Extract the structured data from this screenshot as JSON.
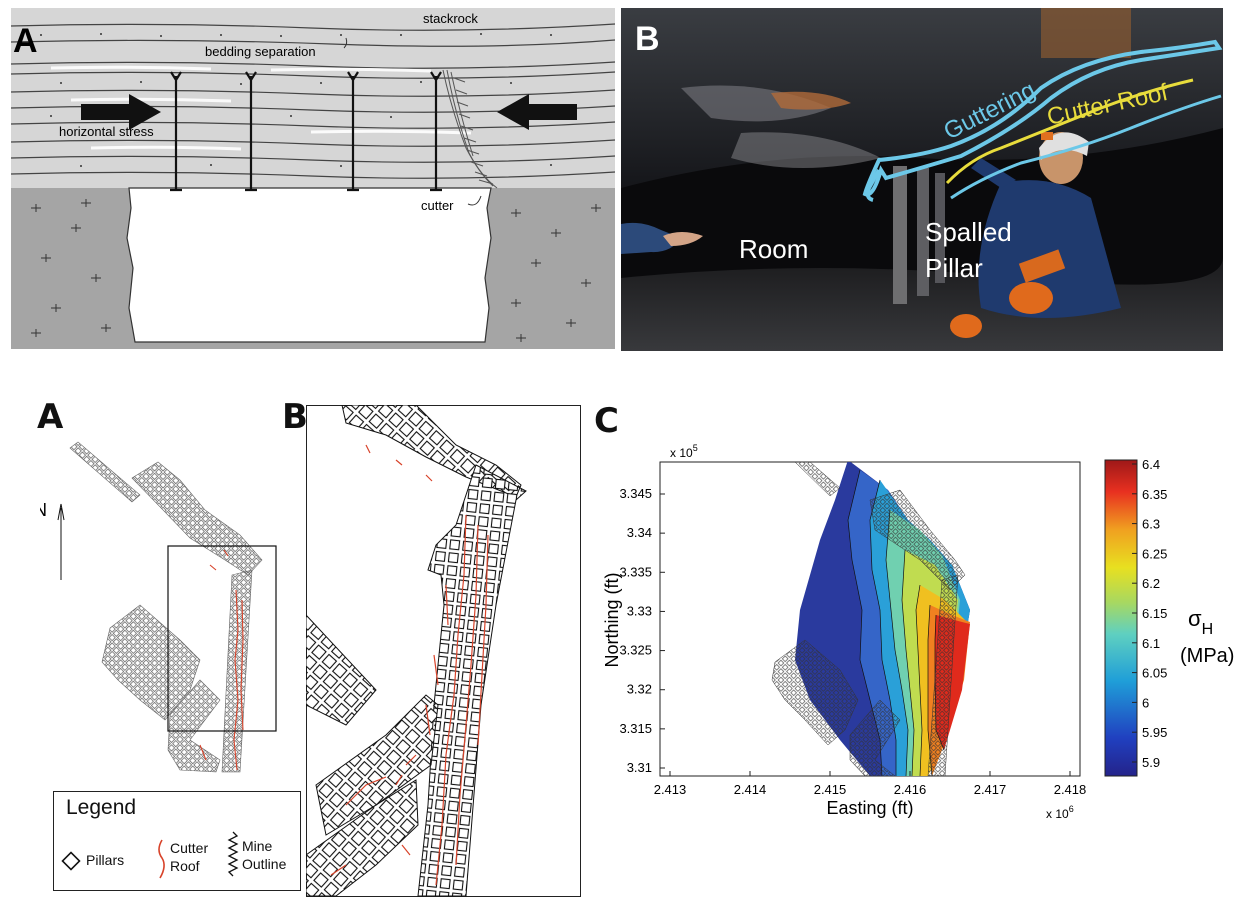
{
  "fig1": {
    "panel_a": {
      "letter": "A",
      "labels": {
        "stackrock": "stackrock",
        "bedding_separation": "bedding separation",
        "horizontal_stress": "horizontal stress",
        "cutter": "cutter"
      }
    },
    "panel_b": {
      "letter": "B",
      "labels": {
        "guttering": "Guttering",
        "cutter_roof": "Cutter Roof",
        "room": "Room",
        "spalled_line1": "Spalled",
        "spalled_line2": "Pillar"
      },
      "colors": {
        "guttering": "#6cc8e8",
        "cutter_roof": "#e8dc3c"
      }
    }
  },
  "fig2": {
    "panel_a": {
      "letter": "A",
      "north": "N"
    },
    "panel_b": {
      "letter": "B"
    },
    "panel_c": {
      "letter": "C",
      "x_multiplier": "x 10",
      "x_multiplier_exp": "6",
      "y_multiplier": "x 10",
      "y_multiplier_exp": "5",
      "xlabel": "Easting (ft)",
      "ylabel": "Northing (ft)",
      "xticks": [
        "2.413",
        "2.414",
        "2.415",
        "2.416",
        "2.417",
        "2.418"
      ],
      "yticks": [
        "3.345",
        "3.34",
        "3.335",
        "3.33",
        "3.325",
        "3.32",
        "3.315",
        "3.31"
      ],
      "colorbar_ticks": [
        "6.4",
        "6.35",
        "6.3",
        "6.25",
        "6.2",
        "6.15",
        "6.1",
        "6.05",
        "6",
        "5.95",
        "5.9"
      ],
      "colorbar_symbol": "σ",
      "colorbar_symbol_sub": "H",
      "colorbar_unit": "(MPa)"
    },
    "legend": {
      "title": "Legend",
      "pillars": "Pillars",
      "cutter_roof_line1": "Cutter",
      "cutter_roof_line2": "Roof",
      "mine_outline_line1": "Mine",
      "mine_outline_line2": "Outline"
    }
  },
  "colors": {
    "cutter_red": "#d8432a",
    "rock_gray": "#a6a6a6",
    "strata_gray": "#d9d9d9"
  }
}
